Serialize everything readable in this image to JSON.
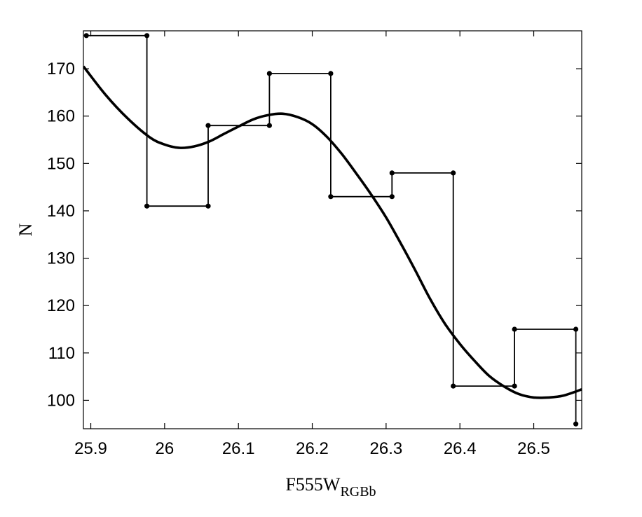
{
  "chart_data": {
    "type": "line",
    "title": "",
    "xlabel": "F555W",
    "xlabel_sub": "RGBb",
    "ylabel": "N",
    "xlim": [
      25.89,
      26.565
    ],
    "ylim": [
      94,
      178
    ],
    "grid": false,
    "legend": "none",
    "x_ticks": [
      25.9,
      26.0,
      26.1,
      26.2,
      26.3,
      26.4,
      26.5
    ],
    "x_tick_labels": [
      "25.9",
      "26",
      "26.1",
      "26.2",
      "26.3",
      "26.4",
      "26.5"
    ],
    "y_ticks": [
      100,
      110,
      120,
      130,
      140,
      150,
      160,
      170
    ],
    "y_tick_labels": [
      "100",
      "110",
      "120",
      "130",
      "140",
      "150",
      "160",
      "170"
    ],
    "series": [
      {
        "style": "step-with-markers",
        "x": [
          25.894,
          25.976,
          25.976,
          26.059,
          26.059,
          26.142,
          26.142,
          26.225,
          26.225,
          26.308,
          26.308,
          26.391,
          26.391,
          26.474,
          26.474,
          26.557,
          26.557
        ],
        "y": [
          177,
          177,
          141,
          141,
          158,
          158,
          169,
          169,
          143,
          143,
          148,
          148,
          103,
          103,
          115,
          115,
          95
        ]
      },
      {
        "style": "smooth-fit",
        "x": [
          25.89,
          25.92,
          25.95,
          25.98,
          26.0,
          26.02,
          26.04,
          26.06,
          26.08,
          26.1,
          26.12,
          26.14,
          26.16,
          26.18,
          26.2,
          26.22,
          26.24,
          26.26,
          26.28,
          26.3,
          26.32,
          26.34,
          26.36,
          26.38,
          26.4,
          26.42,
          26.44,
          26.46,
          26.48,
          26.5,
          26.52,
          26.54,
          26.565
        ],
        "y": [
          170.5,
          164.5,
          159.5,
          155.5,
          154.0,
          153.3,
          153.6,
          154.6,
          156.2,
          157.8,
          159.3,
          160.2,
          160.5,
          159.8,
          158.3,
          155.6,
          152.0,
          147.8,
          143.4,
          138.6,
          133.1,
          127.3,
          121.3,
          116.1,
          111.9,
          108.3,
          105.1,
          102.9,
          101.3,
          100.6,
          100.6,
          101.0,
          102.3
        ]
      }
    ]
  }
}
